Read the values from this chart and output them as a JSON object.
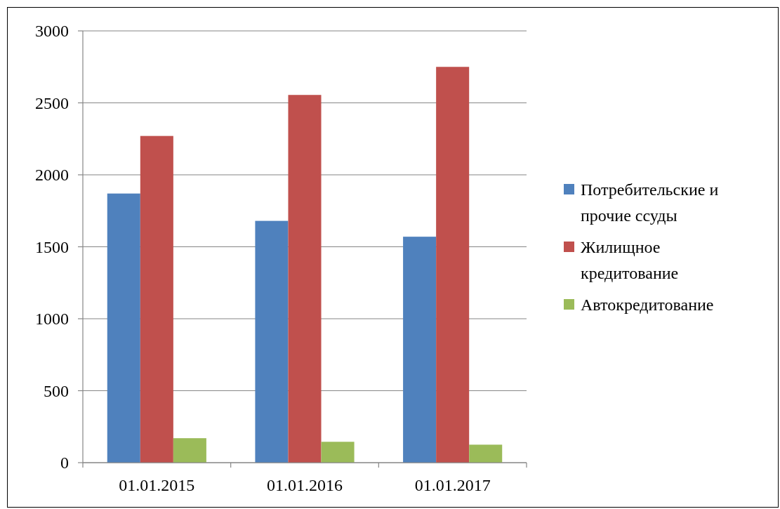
{
  "chart_data": {
    "type": "bar",
    "categories": [
      "01.01.2015",
      "01.01.2016",
      "01.01.2017"
    ],
    "series": [
      {
        "name": "Потребительские и прочие ссуды",
        "color": "#4f81bd",
        "values": [
          1870,
          1680,
          1570
        ]
      },
      {
        "name": "Жилищное кредитование",
        "color": "#c0504d",
        "values": [
          2270,
          2555,
          2750
        ]
      },
      {
        "name": "Автокредитование",
        "color": "#9bbb59",
        "values": [
          170,
          145,
          125
        ]
      }
    ],
    "ylim": [
      0,
      3000
    ],
    "yticks": [
      0,
      500,
      1000,
      1500,
      2000,
      2500,
      3000
    ],
    "grid": "y",
    "legend": "right"
  }
}
